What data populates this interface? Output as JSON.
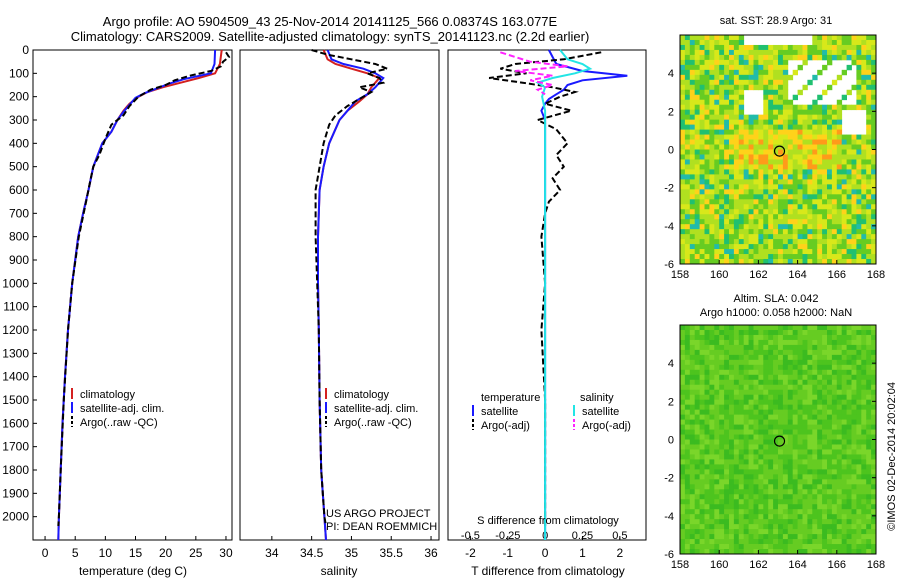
{
  "title_line1": "Argo profile: AO 5904509_43 25-Nov-2014 20141125_566 0.08374S 163.077E",
  "title_line2": "Climatology: CARS2009. Satellite-adjusted climatology: synTS_20141123.nc (2.2d earlier)",
  "imos_stamp": "©IMOS 02-Dec-2014 20:02:04",
  "project_lines": [
    "US ARGO PROJECT",
    "PI: DEAN ROEMMICH"
  ],
  "colors": {
    "clim": "#d42020",
    "sat": "#1a1aff",
    "argo": "#000000",
    "sat_s": "#22e5e5",
    "argo_s": "#ff22ff"
  },
  "chart_data": [
    {
      "type": "line",
      "panel": "temperature",
      "xlabel": "temperature (deg C)",
      "xlim": [
        -2,
        31
      ],
      "xticks": [
        0,
        5,
        10,
        15,
        20,
        25,
        30
      ],
      "ylim": [
        2100,
        0
      ],
      "yticks": [
        0,
        100,
        200,
        300,
        400,
        500,
        600,
        700,
        800,
        900,
        1000,
        1100,
        1200,
        1300,
        1400,
        1500,
        1600,
        1700,
        1800,
        1900,
        2000
      ],
      "legend": [
        "climatology",
        "satellite-adj. clim.",
        "Argo(..raw -QC)"
      ],
      "series": [
        {
          "name": "climatology",
          "depth": [
            0,
            60,
            100,
            120,
            140,
            160,
            180,
            200,
            230,
            260,
            300,
            350,
            400,
            500,
            600,
            700,
            800,
            900,
            1000,
            1200,
            1400,
            1600,
            1800,
            2000,
            2100
          ],
          "values": [
            29.3,
            29.0,
            28.2,
            25.5,
            22.5,
            19.5,
            17.0,
            15.5,
            14.0,
            13.0,
            12.0,
            11.0,
            9.5,
            8.0,
            7.2,
            6.3,
            5.5,
            5.0,
            4.5,
            3.8,
            3.3,
            2.9,
            2.6,
            2.3,
            2.2
          ]
        },
        {
          "name": "satellite-adj. clim.",
          "depth": [
            0,
            60,
            100,
            125,
            145,
            165,
            185,
            205,
            235,
            265,
            300,
            350,
            400,
            500,
            600,
            700,
            800,
            900,
            1000,
            1200,
            1400,
            1600,
            1800,
            2000,
            2100
          ],
          "values": [
            28.2,
            28.1,
            27.5,
            23.0,
            20.5,
            18.5,
            16.5,
            15.0,
            14.0,
            13.0,
            12.0,
            11.0,
            9.5,
            8.0,
            7.2,
            6.3,
            5.5,
            5.0,
            4.5,
            3.8,
            3.3,
            2.9,
            2.6,
            2.3,
            2.2
          ]
        },
        {
          "name": "Argo(..raw -QC)",
          "depth": [
            10,
            30,
            50,
            70,
            90,
            110,
            130,
            150,
            170,
            200,
            240,
            280,
            320,
            380,
            450,
            500,
            560,
            650,
            800,
            1000,
            1200,
            1500,
            1800,
            2000,
            2040
          ],
          "values": [
            30.0,
            30.5,
            29.5,
            29.2,
            27.5,
            24.0,
            21.5,
            20.0,
            17.5,
            15.5,
            14.0,
            13.0,
            11.0,
            10.0,
            9.0,
            8.0,
            7.5,
            6.8,
            5.6,
            4.5,
            3.8,
            3.1,
            2.6,
            2.3,
            2.2
          ]
        }
      ]
    },
    {
      "type": "line",
      "panel": "salinity",
      "xlabel": "salinity",
      "xlim": [
        33.6,
        36.1
      ],
      "xticks": [
        34,
        34.5,
        35,
        35.5,
        36
      ],
      "ylim": [
        2100,
        0
      ],
      "legend": [
        "climatology",
        "satellite-adj. clim.",
        "Argo(..raw -QC)"
      ],
      "series": [
        {
          "name": "climatology",
          "depth": [
            0,
            40,
            60,
            80,
            100,
            120,
            140,
            160,
            190,
            220,
            260,
            300,
            400,
            500,
            600,
            800,
            1000,
            1200,
            1500,
            1800,
            2000,
            2100
          ],
          "values": [
            34.65,
            34.7,
            34.8,
            35.0,
            35.2,
            35.35,
            35.3,
            35.25,
            35.2,
            35.1,
            34.95,
            34.85,
            34.72,
            34.65,
            34.6,
            34.58,
            34.58,
            34.59,
            34.6,
            34.62,
            34.66,
            34.68
          ]
        },
        {
          "name": "satellite-adj. clim.",
          "depth": [
            0,
            40,
            60,
            80,
            100,
            120,
            140,
            160,
            190,
            220,
            260,
            300,
            400,
            500,
            600,
            800,
            1000,
            1200,
            1500,
            1800,
            2000,
            2100
          ],
          "values": [
            34.7,
            34.75,
            34.9,
            35.15,
            35.3,
            35.4,
            35.35,
            35.3,
            35.2,
            35.05,
            34.95,
            34.85,
            34.72,
            34.65,
            34.6,
            34.58,
            34.58,
            34.59,
            34.6,
            34.62,
            34.66,
            34.68
          ]
        },
        {
          "name": "Argo(..raw -QC)",
          "depth": [
            0,
            20,
            40,
            60,
            80,
            100,
            120,
            140,
            160,
            180,
            200,
            240,
            280,
            320,
            400,
            500,
            600,
            800,
            1000,
            1200,
            1500,
            1800,
            2000,
            2040
          ],
          "values": [
            34.5,
            34.7,
            35.0,
            35.3,
            35.45,
            35.2,
            35.35,
            35.4,
            35.1,
            35.25,
            35.15,
            34.95,
            34.8,
            34.72,
            34.65,
            34.6,
            34.55,
            34.55,
            34.57,
            34.59,
            34.6,
            34.62,
            34.66,
            34.68
          ]
        }
      ]
    },
    {
      "type": "line",
      "panel": "difference",
      "xlabel": "T difference from climatology",
      "xlabel_top": "S difference from climatology",
      "xlim": [
        -2.6,
        2.7
      ],
      "xticks": [
        -2,
        -1,
        0,
        1,
        2
      ],
      "xticks_top": [
        -0.5,
        -0.25,
        0,
        0.25,
        0.5
      ],
      "ylim": [
        2100,
        0
      ],
      "legend_groups": [
        "temperature",
        "salinity"
      ],
      "legend": [
        "satellite",
        "Argo(-adj)",
        "satellite",
        "Argo(-adj)"
      ],
      "series": [
        {
          "name": "T satellite",
          "depth": [
            0,
            60,
            90,
            110,
            130,
            150,
            170,
            190,
            210,
            230,
            260,
            300,
            350,
            400,
            500,
            700,
            1000,
            1500,
            2000,
            2100
          ],
          "values": [
            0.1,
            0.3,
            1.0,
            2.2,
            1.0,
            0.6,
            0.5,
            0.3,
            0.1,
            0.0,
            -0.1,
            0.0,
            0.0,
            0.0,
            0.0,
            0.0,
            0.0,
            0.0,
            0.0,
            0.0
          ]
        },
        {
          "name": "T Argo(-adj)",
          "depth": [
            10,
            40,
            60,
            80,
            100,
            120,
            140,
            160,
            180,
            200,
            230,
            260,
            300,
            340,
            400,
            450,
            500,
            550,
            600,
            650,
            700,
            800,
            1000,
            1200,
            1500,
            1800,
            2000,
            2040
          ],
          "values": [
            1.5,
            0.5,
            -0.8,
            -1.2,
            -0.5,
            -1.5,
            -0.6,
            0.2,
            0.8,
            0.4,
            0.0,
            0.7,
            -0.2,
            0.3,
            0.6,
            0.3,
            0.5,
            0.2,
            0.4,
            0.1,
            0.0,
            -0.1,
            0.0,
            -0.1,
            0.0,
            0.0,
            0.0,
            0.0
          ]
        },
        {
          "name": "S satellite",
          "depth": [
            0,
            40,
            60,
            80,
            100,
            120,
            140,
            160,
            200,
            260,
            300,
            400,
            600,
            1000,
            1500,
            2000,
            2100
          ],
          "values": [
            0.1,
            0.15,
            0.25,
            0.3,
            0.2,
            0.05,
            -0.05,
            0.0,
            -0.02,
            0.0,
            0.0,
            0.0,
            0.0,
            0.0,
            0.0,
            0.0,
            0.0
          ]
        },
        {
          "name": "S Argo(-adj)",
          "depth": [
            10,
            30,
            50,
            70,
            90,
            110,
            130,
            150,
            170,
            190
          ],
          "values": [
            -0.3,
            -0.2,
            -0.1,
            0.15,
            -0.2,
            0.05,
            -0.1,
            0.05,
            -0.05,
            0.0
          ]
        }
      ]
    },
    {
      "type": "heatmap",
      "panel": "sst_map",
      "title": "sat. SST: 28.9 Argo: 31",
      "xlim": [
        158,
        168
      ],
      "ylim": [
        -6,
        6
      ],
      "xticks": [
        158,
        160,
        162,
        164,
        166,
        168
      ],
      "yticks": [
        -6,
        -4,
        -2,
        0,
        2,
        4
      ],
      "marker": [
        163.077,
        -0.08374
      ]
    },
    {
      "type": "heatmap",
      "panel": "sla_map",
      "title_line1": "Altim. SLA: 0.042",
      "title_line2": "Argo h1000: 0.058 h2000: NaN",
      "xlim": [
        158,
        168
      ],
      "ylim": [
        -6,
        6
      ],
      "xticks": [
        158,
        160,
        162,
        164,
        166,
        168
      ],
      "yticks": [
        -6,
        -4,
        -2,
        0,
        2,
        4
      ],
      "marker": [
        163.077,
        -0.08374
      ]
    }
  ]
}
